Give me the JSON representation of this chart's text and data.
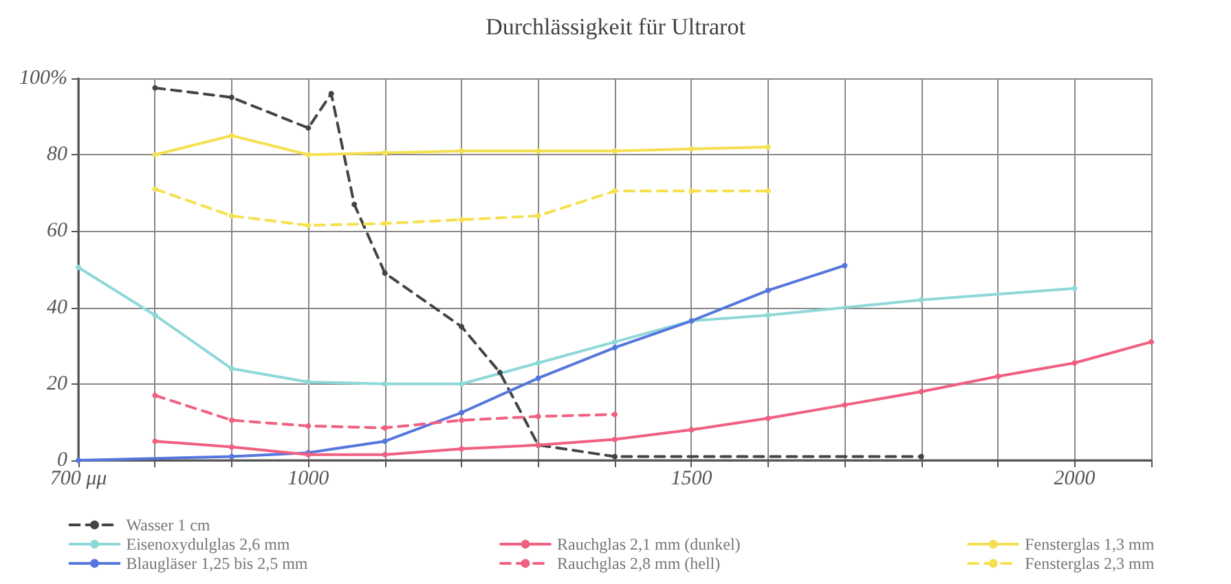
{
  "chart_data": {
    "type": "line",
    "title": "Durchlässigkeit für Ultrarot",
    "xlim": [
      700,
      2100
    ],
    "xticks": [
      {
        "value": 700,
        "label": "700 μμ"
      },
      {
        "value": 800,
        "label": null
      },
      {
        "value": 900,
        "label": null
      },
      1000,
      {
        "value": 1100,
        "label": null
      },
      {
        "value": 1200,
        "label": null
      },
      {
        "value": 1300,
        "label": null
      },
      {
        "value": 1400,
        "label": null
      },
      1500,
      {
        "value": 1600,
        "label": null
      },
      {
        "value": 1700,
        "label": null
      },
      {
        "value": 1800,
        "label": null
      },
      {
        "value": 1900,
        "label": null
      },
      2000,
      {
        "value": 2100,
        "label": null
      }
    ],
    "ylim": [
      0,
      100
    ],
    "yticks": [
      0,
      20,
      40,
      60,
      80,
      {
        "value": 100,
        "label": "100%"
      }
    ],
    "grid": true,
    "legend": "bottom",
    "marker": "circle",
    "series": [
      {
        "name": "Wasser 1 cm",
        "color": "#444444",
        "line_style": "dashed",
        "x": [
          800,
          900,
          1000,
          1030,
          1060,
          1100,
          1200,
          1250,
          1300,
          1400,
          1800
        ],
        "values": [
          97.5,
          95,
          87,
          96,
          67,
          49,
          35,
          23,
          4,
          1,
          1
        ]
      },
      {
        "name": "Eisenoxydulglas 2,6 mm",
        "color": "#8fd8d8",
        "line_style": "solid",
        "x": [
          700,
          800,
          900,
          1000,
          1100,
          1200,
          1300,
          1400,
          1500,
          1600,
          1800,
          2000
        ],
        "values": [
          50.5,
          38,
          24,
          20.5,
          20,
          20,
          25.5,
          31,
          36.5,
          38,
          42,
          45
        ]
      },
      {
        "name": "Blaugläser 1,25 bis 2,5 mm",
        "color": "#5577dd",
        "line_style": "solid",
        "x": [
          700,
          900,
          1000,
          1100,
          1200,
          1300,
          1400,
          1500,
          1600,
          1700
        ],
        "values": [
          0,
          1,
          2,
          5,
          12.5,
          21.5,
          29.5,
          36.5,
          44.5,
          51
        ]
      },
      {
        "name": "Rauchglas 2,1 mm (dunkel)",
        "color": "#f06080",
        "line_style": "solid",
        "x": [
          800,
          900,
          1000,
          1100,
          1200,
          1300,
          1400,
          1500,
          1600,
          1700,
          1800,
          1900,
          2000,
          2100
        ],
        "values": [
          5,
          3.5,
          1.5,
          1.5,
          3,
          4,
          5.5,
          8,
          11,
          14.5,
          18,
          22,
          25.5,
          31
        ]
      },
      {
        "name": "Rauchglas 2,8 mm (hell)",
        "color": "#f06080",
        "line_style": "dashed",
        "x": [
          800,
          900,
          1000,
          1100,
          1200,
          1300,
          1400
        ],
        "values": [
          17,
          10.5,
          9,
          8.5,
          10.5,
          11.5,
          12
        ]
      },
      {
        "name": "Fensterglas 1,3 mm",
        "color": "#f5e050",
        "line_style": "solid",
        "x": [
          800,
          900,
          1000,
          1100,
          1200,
          1300,
          1400,
          1500,
          1600
        ],
        "values": [
          80,
          85,
          80,
          80.5,
          81,
          81,
          81,
          81.5,
          82
        ]
      },
      {
        "name": "Fensterglas 2,3 mm",
        "color": "#f5e050",
        "line_style": "dashed",
        "x": [
          800,
          900,
          1000,
          1100,
          1200,
          1300,
          1400,
          1500,
          1600
        ],
        "values": [
          71,
          64,
          61.5,
          62,
          63,
          64,
          70.5,
          70.5,
          70.5
        ]
      }
    ]
  }
}
